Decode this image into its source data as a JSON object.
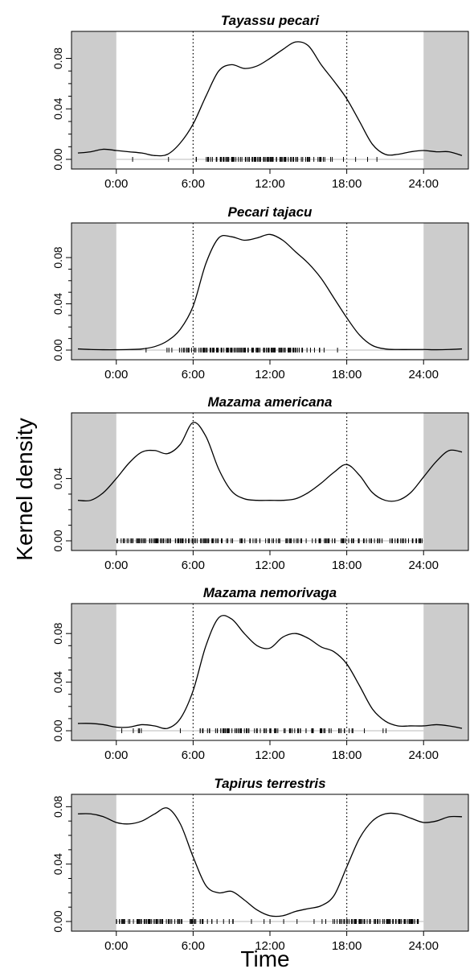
{
  "chart_data": {
    "type": "line",
    "ylabel": "Kernel density",
    "xlabel": "Time",
    "x_range_hours": [
      -3.5,
      27.5
    ],
    "x_ticks": [
      {
        "value": 0,
        "label": "0:00"
      },
      {
        "value": 6,
        "label": "6:00"
      },
      {
        "value": 12,
        "label": "12:00"
      },
      {
        "value": 18,
        "label": "18:00"
      },
      {
        "value": 24,
        "label": "24:00"
      }
    ],
    "shaded_hours": [
      [
        -3.5,
        0
      ],
      [
        24,
        27.5
      ]
    ],
    "reference_lines_hours": [
      6,
      18
    ],
    "grid": false,
    "colors": {
      "line": "#000000",
      "shade": "#cccccc",
      "reference": "#000000"
    },
    "panels": [
      {
        "title": "Tayassu pecari",
        "ylim": [
          0,
          0.095
        ],
        "yticks": [
          {
            "value": 0,
            "label": "0.00"
          },
          {
            "value": 0.04,
            "label": "0.04"
          },
          {
            "value": 0.08,
            "label": "0.08"
          }
        ],
        "x": [
          -3.0,
          -2.0,
          -1.0,
          0.0,
          1.0,
          2.0,
          3.0,
          4.0,
          5.0,
          6.0,
          7.0,
          8.0,
          9.0,
          10.0,
          11.0,
          12.0,
          13.0,
          14.0,
          15.0,
          16.0,
          17.0,
          18.0,
          19.0,
          20.0,
          21.0,
          22.0,
          23.0,
          24.0,
          25.0,
          26.0,
          27.0
        ],
        "y": [
          0.005,
          0.006,
          0.008,
          0.007,
          0.006,
          0.005,
          0.003,
          0.004,
          0.013,
          0.028,
          0.05,
          0.07,
          0.075,
          0.072,
          0.074,
          0.08,
          0.087,
          0.093,
          0.09,
          0.075,
          0.062,
          0.048,
          0.03,
          0.012,
          0.004,
          0.004,
          0.006,
          0.007,
          0.006,
          0.006,
          0.003
        ],
        "rug_density": [
          0.02,
          0.08,
          0.02,
          0.02,
          0.04,
          0.02,
          0.15,
          0.75,
          0.8,
          0.78,
          0.8,
          0.85,
          0.9,
          0.85,
          0.7,
          0.6,
          0.3,
          0.08,
          0.08,
          0.04,
          0.04,
          0.02
        ]
      },
      {
        "title": "Pecari tajacu",
        "ylim": [
          0,
          0.103
        ],
        "yticks": [
          {
            "value": 0,
            "label": "0.00"
          },
          {
            "value": 0.04,
            "label": "0.04"
          },
          {
            "value": 0.08,
            "label": "0.08"
          }
        ],
        "x": [
          -3.0,
          -2.0,
          -1.0,
          0.0,
          1.0,
          2.0,
          3.0,
          4.0,
          5.0,
          6.0,
          7.0,
          8.0,
          9.0,
          10.0,
          11.0,
          12.0,
          13.0,
          14.0,
          15.0,
          16.0,
          17.0,
          18.0,
          19.0,
          20.0,
          21.0,
          22.0,
          23.0,
          24.0,
          25.0,
          26.0,
          27.0
        ],
        "y": [
          0.001,
          0.0005,
          0.0003,
          0.0003,
          0.0005,
          0.001,
          0.003,
          0.008,
          0.018,
          0.038,
          0.075,
          0.097,
          0.098,
          0.095,
          0.097,
          0.1,
          0.095,
          0.085,
          0.075,
          0.062,
          0.045,
          0.028,
          0.013,
          0.004,
          0.001,
          0.0005,
          0.0005,
          0.0005,
          0.0003,
          0.0005,
          0.001
        ],
        "rug_density": [
          0.01,
          0.03,
          0.06,
          0.1,
          0.18,
          0.55,
          0.95,
          1.0,
          0.98,
          0.95,
          0.97,
          0.95,
          0.85,
          0.75,
          0.5,
          0.25,
          0.08,
          0.04,
          0.01,
          0.02,
          0.01,
          0.01
        ]
      },
      {
        "title": "Mazama americana",
        "ylim": [
          0,
          0.077
        ],
        "yticks": [
          {
            "value": 0,
            "label": "0.00"
          },
          {
            "value": 0.04,
            "label": "0.04"
          }
        ],
        "x": [
          -3.0,
          -2.0,
          -1.0,
          0.0,
          1.0,
          2.0,
          3.0,
          4.0,
          5.0,
          6.0,
          7.0,
          8.0,
          9.0,
          10.0,
          11.0,
          12.0,
          13.0,
          14.0,
          15.0,
          16.0,
          17.0,
          18.0,
          19.0,
          20.0,
          21.0,
          22.0,
          23.0,
          24.0,
          25.0,
          26.0,
          27.0
        ],
        "y": [
          0.026,
          0.026,
          0.031,
          0.04,
          0.05,
          0.057,
          0.058,
          0.056,
          0.062,
          0.076,
          0.067,
          0.046,
          0.032,
          0.027,
          0.026,
          0.026,
          0.026,
          0.027,
          0.031,
          0.037,
          0.044,
          0.049,
          0.042,
          0.031,
          0.026,
          0.026,
          0.031,
          0.041,
          0.051,
          0.058,
          0.057
        ],
        "rug_density": [
          0.6,
          0.75,
          0.85,
          0.85,
          0.8,
          0.75,
          0.95,
          0.7,
          0.45,
          0.4,
          0.4,
          0.4,
          0.45,
          0.5,
          0.5,
          0.6,
          0.7,
          0.8,
          0.55,
          0.45,
          0.4,
          0.45,
          0.55,
          0.65
        ]
      },
      {
        "title": "Mazama nemorivaga",
        "ylim": [
          0,
          0.098
        ],
        "yticks": [
          {
            "value": 0,
            "label": "0.00"
          },
          {
            "value": 0.04,
            "label": "0.04"
          },
          {
            "value": 0.08,
            "label": "0.08"
          }
        ],
        "x": [
          -3.0,
          -2.0,
          -1.0,
          0.0,
          1.0,
          2.0,
          3.0,
          4.0,
          5.0,
          6.0,
          7.0,
          8.0,
          9.0,
          10.0,
          11.0,
          12.0,
          13.0,
          14.0,
          15.0,
          16.0,
          17.0,
          18.0,
          19.0,
          20.0,
          21.0,
          22.0,
          23.0,
          24.0,
          25.0,
          26.0,
          27.0
        ],
        "y": [
          0.006,
          0.006,
          0.005,
          0.003,
          0.003,
          0.005,
          0.004,
          0.002,
          0.01,
          0.033,
          0.07,
          0.093,
          0.092,
          0.08,
          0.07,
          0.068,
          0.077,
          0.08,
          0.076,
          0.069,
          0.065,
          0.055,
          0.037,
          0.018,
          0.008,
          0.004,
          0.004,
          0.004,
          0.005,
          0.004,
          0.002
        ],
        "rug_density": [
          0.05,
          0.25,
          0.02,
          0.02,
          0.02,
          0.05,
          0.25,
          0.5,
          0.75,
          0.6,
          0.5,
          0.4,
          0.55,
          0.55,
          0.45,
          0.5,
          0.5,
          0.4,
          0.2,
          0.1,
          0.1,
          0.05
        ]
      },
      {
        "title": "Tapirus terrestris",
        "ylim": [
          0,
          0.083
        ],
        "yticks": [
          {
            "value": 0,
            "label": "0.00"
          },
          {
            "value": 0.04,
            "label": "0.04"
          },
          {
            "value": 0.08,
            "label": "0.08"
          }
        ],
        "x": [
          -3.0,
          -2.0,
          -1.0,
          0.0,
          1.0,
          2.0,
          3.0,
          4.0,
          5.0,
          6.0,
          7.0,
          8.0,
          9.0,
          10.0,
          11.0,
          12.0,
          13.0,
          14.0,
          15.0,
          16.0,
          17.0,
          18.0,
          19.0,
          20.0,
          21.0,
          22.0,
          23.0,
          24.0,
          25.0,
          26.0,
          27.0
        ],
        "y": [
          0.075,
          0.075,
          0.073,
          0.069,
          0.068,
          0.07,
          0.075,
          0.079,
          0.068,
          0.045,
          0.025,
          0.02,
          0.021,
          0.015,
          0.008,
          0.004,
          0.004,
          0.007,
          0.009,
          0.011,
          0.018,
          0.038,
          0.058,
          0.07,
          0.075,
          0.075,
          0.072,
          0.069,
          0.07,
          0.073,
          0.073
        ],
        "rug_density": [
          0.95,
          0.95,
          0.85,
          0.85,
          0.6,
          0.5,
          0.55,
          0.25,
          0.15,
          0.12,
          0.1,
          0.08,
          0.08,
          0.08,
          0.08,
          0.1,
          0.2,
          0.55,
          0.75,
          0.8,
          0.85,
          0.9,
          0.95,
          0.95
        ]
      }
    ]
  }
}
